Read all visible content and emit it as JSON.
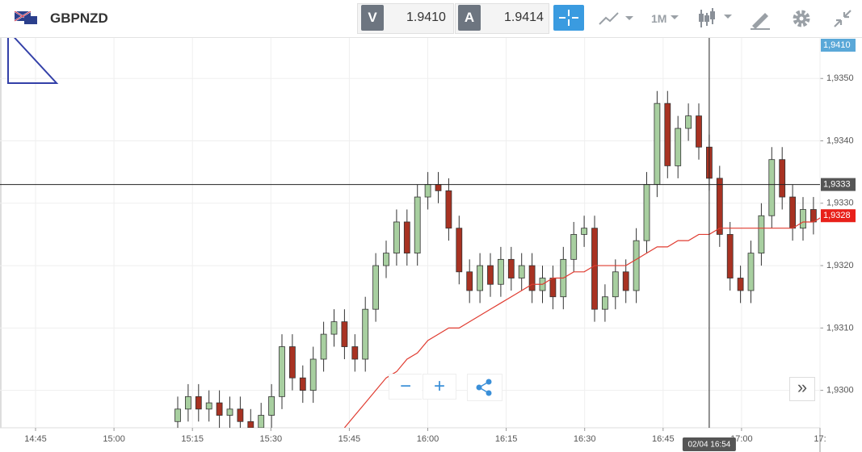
{
  "header": {
    "symbol": "GBPNZD",
    "bid_letter": "V",
    "bid": "1.9410",
    "ask_letter": "A",
    "ask": "1.9414",
    "timeframe": "1M"
  },
  "controls": {
    "zoom_out": "−",
    "zoom_in": "+",
    "scroll": "»"
  },
  "chart_data": {
    "type": "candlestick",
    "open": [
      1.9295,
      1.9297,
      1.9299,
      1.9297,
      1.9298,
      1.9296,
      1.9297,
      1.9295,
      1.9294,
      1.9296,
      1.9299,
      1.9307,
      1.9302,
      1.93,
      1.9305,
      1.9309,
      1.9311,
      1.9307,
      1.9305,
      1.9313,
      1.932,
      1.9322,
      1.9327,
      1.9322,
      1.9331,
      1.9333,
      1.9332,
      1.9326,
      1.9319,
      1.9316,
      1.932,
      1.9317,
      1.9321,
      1.9318,
      1.932,
      1.9316,
      1.9318,
      1.9315,
      1.9321,
      1.9325,
      1.9326,
      1.9313,
      1.9315,
      1.9319,
      1.9316,
      1.9324,
      1.9333,
      1.9346,
      1.9336,
      1.9342,
      1.9344,
      1.9339,
      1.9334,
      1.9325,
      1.9318,
      1.9316,
      1.9322,
      1.9328,
      1.9337,
      1.9331,
      1.9326,
      1.9329,
      1.9327
    ],
    "high": [
      1.9299,
      1.9301,
      1.9301,
      1.93,
      1.93,
      1.9299,
      1.9299,
      1.9297,
      1.9298,
      1.9301,
      1.9309,
      1.9309,
      1.9304,
      1.9307,
      1.9311,
      1.9313,
      1.9313,
      1.9309,
      1.9315,
      1.9322,
      1.9324,
      1.9329,
      1.9329,
      1.9333,
      1.9335,
      1.9335,
      1.9334,
      1.9328,
      1.9321,
      1.9322,
      1.9322,
      1.9323,
      1.9323,
      1.9322,
      1.9322,
      1.932,
      1.932,
      1.9323,
      1.9327,
      1.9328,
      1.9328,
      1.9317,
      1.9321,
      1.9321,
      1.9326,
      1.9335,
      1.9348,
      1.9348,
      1.9344,
      1.9346,
      1.9346,
      1.9341,
      1.9336,
      1.9327,
      1.932,
      1.9324,
      1.933,
      1.9339,
      1.9339,
      1.9333,
      1.9331,
      1.9331,
      1.933
    ],
    "low": [
      1.9293,
      1.9295,
      1.9295,
      1.9295,
      1.9294,
      1.9294,
      1.9293,
      1.9292,
      1.9292,
      1.9294,
      1.9297,
      1.93,
      1.9298,
      1.9298,
      1.9303,
      1.9307,
      1.9305,
      1.9303,
      1.9303,
      1.9311,
      1.9318,
      1.932,
      1.932,
      1.932,
      1.9329,
      1.933,
      1.9324,
      1.9317,
      1.9314,
      1.9314,
      1.9315,
      1.9315,
      1.9316,
      1.9316,
      1.9314,
      1.9314,
      1.9313,
      1.9313,
      1.9319,
      1.9323,
      1.9311,
      1.9311,
      1.9313,
      1.9314,
      1.9314,
      1.9322,
      1.9331,
      1.9334,
      1.9334,
      1.934,
      1.9337,
      1.9332,
      1.9323,
      1.9316,
      1.9314,
      1.9314,
      1.932,
      1.9326,
      1.9329,
      1.9324,
      1.9324,
      1.9325,
      1.9325
    ],
    "close": [
      1.9297,
      1.9299,
      1.9297,
      1.9298,
      1.9296,
      1.9297,
      1.9295,
      1.9294,
      1.9296,
      1.9299,
      1.9307,
      1.9302,
      1.93,
      1.9305,
      1.9309,
      1.9311,
      1.9307,
      1.9305,
      1.9313,
      1.932,
      1.9322,
      1.9327,
      1.9322,
      1.9331,
      1.9333,
      1.9332,
      1.9326,
      1.9319,
      1.9316,
      1.932,
      1.9317,
      1.9321,
      1.9318,
      1.932,
      1.9316,
      1.9318,
      1.9315,
      1.9321,
      1.9325,
      1.9326,
      1.9313,
      1.9315,
      1.9319,
      1.9316,
      1.9324,
      1.9333,
      1.9346,
      1.9336,
      1.9342,
      1.9344,
      1.9339,
      1.9334,
      1.9325,
      1.9318,
      1.9316,
      1.9322,
      1.9328,
      1.9337,
      1.9331,
      1.9326,
      1.9329,
      1.9327,
      1.9328
    ],
    "ma": [
      null,
      null,
      null,
      null,
      null,
      null,
      null,
      null,
      null,
      null,
      null,
      null,
      null,
      null,
      null,
      null,
      1.9294,
      1.9296,
      1.9298,
      1.93,
      1.9302,
      1.9303,
      1.9305,
      1.9306,
      1.9308,
      1.9309,
      1.931,
      1.931,
      1.9311,
      1.9312,
      1.9313,
      1.9314,
      1.9315,
      1.9316,
      1.9317,
      1.9317,
      1.9318,
      1.9318,
      1.9319,
      1.9319,
      1.932,
      1.932,
      1.932,
      1.932,
      1.9321,
      1.9322,
      1.9323,
      1.9323,
      1.9324,
      1.9324,
      1.9325,
      1.9325,
      1.9326,
      1.9326,
      1.9326,
      1.9326,
      1.9326,
      1.9326,
      1.9326,
      1.9326,
      1.9327,
      1.9327,
      1.9328
    ],
    "up_color": "#a8cfa0",
    "down_color": "#a83222",
    "ma_color": "#e03c31",
    "ylim": [
      1.9294,
      1.93565
    ],
    "yticks": [
      {
        "value": 1.93,
        "label": "1,9300"
      },
      {
        "value": 1.931,
        "label": "1,9310"
      },
      {
        "value": 1.932,
        "label": "1,9320"
      },
      {
        "value": 1.933,
        "label": "1,9330"
      },
      {
        "value": 1.934,
        "label": "1,9340"
      },
      {
        "value": 1.935,
        "label": "1,9350"
      }
    ],
    "xtick_labels": [
      "14:45",
      "15:00",
      "15:15",
      "15:30",
      "15:45",
      "16:00",
      "16:15",
      "16:30",
      "16:45",
      "17:00",
      "17:"
    ],
    "grid": true,
    "bid_tag": "1,9410",
    "last_price": {
      "value": 1.9328,
      "label": "1,9328"
    },
    "crosshair": {
      "price": 1.9333,
      "price_label": "1,9333",
      "time_label": "02/04 16:54"
    }
  }
}
